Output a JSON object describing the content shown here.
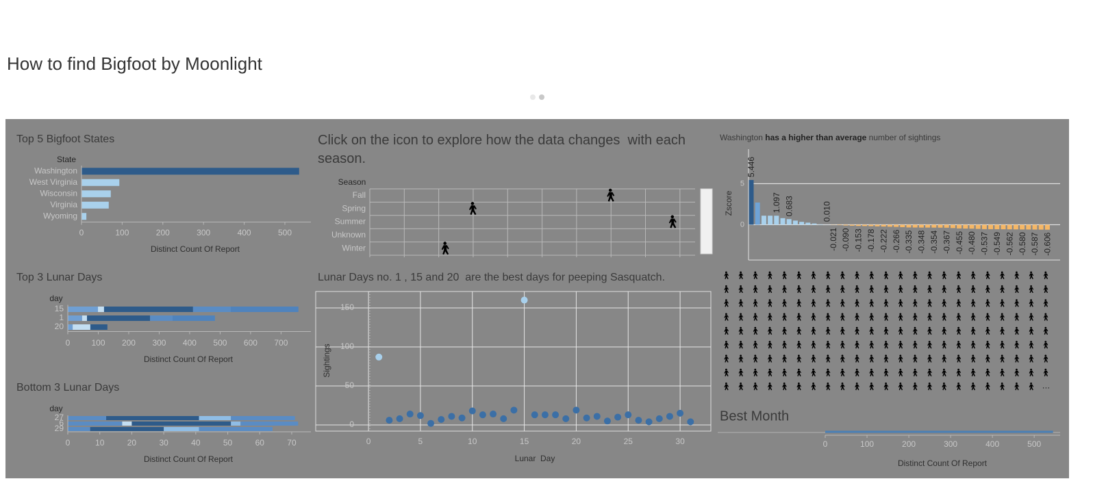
{
  "title": "How to find Bigfoot by Moonlight",
  "icon_grid": {
    "overflow": "…"
  },
  "chart_data": [
    {
      "type": "hbar",
      "title": "Top 5 Bigfoot States",
      "category_header": "State",
      "categories": [
        "Washington",
        "West Virginia",
        "Wisconsin",
        "Virginia",
        "Wyoming"
      ],
      "values": [
        535,
        93,
        72,
        67,
        12
      ],
      "colors": [
        "#2e5b8a",
        "#a9d1ec",
        "#a9d1ec",
        "#a9d1ec",
        "#a9d1ec"
      ],
      "xlim": [
        0,
        564
      ],
      "xticks": [
        0,
        100,
        200,
        300,
        400,
        500
      ],
      "xlabel": "Distinct Count Of Report"
    },
    {
      "type": "stacked_hbar",
      "title": "Top 3 Lunar Days",
      "category_header": "day",
      "categories": [
        "15",
        "1",
        "20"
      ],
      "series": [
        {
          "color": "#6f9fd3",
          "values": [
            99,
            47,
            16
          ]
        },
        {
          "color": "#c3def2",
          "values": [
            20,
            16,
            58
          ]
        },
        {
          "color": "#2e5b8a",
          "values": [
            292,
            207,
            56
          ]
        },
        {
          "color": "#5a8cc4",
          "values": [
            124,
            74,
            0
          ]
        },
        {
          "color": "#4f83bd",
          "values": [
            222,
            139,
            0
          ]
        }
      ],
      "xlim": [
        0,
        798
      ],
      "xticks": [
        0,
        100,
        200,
        300,
        400,
        500,
        600,
        700
      ],
      "xlabel": "Distinct Count Of Report"
    },
    {
      "type": "stacked_hbar",
      "title": "Bottom 3 Lunar Days",
      "category_header": "day",
      "categories": [
        "27",
        "6",
        "29"
      ],
      "series": [
        {
          "color": "#5a8cc4",
          "values": [
            12,
            17,
            7
          ]
        },
        {
          "color": "#c3def2",
          "values": [
            0,
            3,
            0
          ]
        },
        {
          "color": "#2e5b8a",
          "values": [
            29,
            31,
            23
          ]
        },
        {
          "color": "#8fbde6",
          "values": [
            10,
            3,
            11
          ]
        },
        {
          "color": "#5a8cc4",
          "values": [
            20,
            18,
            23
          ]
        }
      ],
      "xlim": [
        0,
        76
      ],
      "xticks": [
        0,
        10,
        20,
        30,
        40,
        50,
        60,
        70
      ],
      "xlabel": "Distinct Count Of Report"
    },
    {
      "type": "strip",
      "title": "Click on the icon to explore how the data changes  with each season.",
      "category_header": "Season",
      "categories": [
        "Fall",
        "Spring",
        "Summer",
        "Unknown",
        "Winter"
      ],
      "values": [
        7.0,
        3.0,
        8.8,
        null,
        2.2
      ],
      "xlim": [
        0,
        9.44
      ],
      "xticks": [
        0,
        1,
        2,
        3,
        4,
        5,
        6,
        7,
        8,
        9
      ]
    },
    {
      "type": "scatter",
      "title": "Lunar Days no. 1 , 15 and 20  are the best days for peeping Sasquatch.",
      "xlabel": "Lunar  Day",
      "ylabel": "Sightings",
      "series": [
        {
          "color": "#3b6fa6",
          "x": [
            2,
            3,
            4,
            5,
            6,
            7,
            8,
            9,
            10,
            11,
            12,
            13,
            14,
            16,
            17,
            18,
            19,
            20,
            21,
            22,
            23,
            24,
            25,
            26,
            27,
            28,
            29,
            30,
            31
          ],
          "values": [
            6,
            8,
            14,
            12,
            2,
            7,
            11,
            9,
            18,
            13,
            14,
            8,
            19,
            13,
            13,
            13,
            8,
            19,
            9,
            11,
            5,
            10,
            13,
            6,
            4,
            8,
            11,
            15,
            4
          ]
        },
        {
          "color": "#a8d0ec",
          "x": [
            1,
            15
          ],
          "values": [
            87,
            160
          ]
        }
      ],
      "xlim": [
        -5.08,
        32.96
      ],
      "ylim": [
        -7.9,
        171
      ],
      "xticks": [
        0,
        5,
        10,
        15,
        20,
        25,
        30
      ],
      "yticks": [
        0,
        50,
        100,
        150
      ],
      "grid": true
    },
    {
      "type": "bar",
      "annotation": {
        "before": "Washington ",
        "emphasis": "has a higher than average",
        "after": " number of sightings"
      },
      "ylabel": "Zscore",
      "values": [
        5.446,
        2.7,
        1.1,
        1.1,
        1.097,
        0.8,
        0.683,
        0.5,
        0.35,
        0.25,
        0.15,
        0.05,
        0.01,
        -0.021,
        -0.05,
        -0.09,
        -0.12,
        -0.153,
        -0.165,
        -0.178,
        -0.2,
        -0.222,
        -0.245,
        -0.266,
        -0.3,
        -0.335,
        -0.341,
        -0.348,
        -0.351,
        -0.354,
        -0.36,
        -0.367,
        -0.41,
        -0.455,
        -0.47,
        -0.48,
        -0.51,
        -0.537,
        -0.543,
        -0.549,
        -0.555,
        -0.562,
        -0.57,
        -0.58,
        -0.584,
        -0.587,
        -0.597,
        -0.606
      ],
      "value_labels": [
        "5.446",
        null,
        null,
        null,
        "1.097",
        null,
        "0.683",
        null,
        null,
        null,
        null,
        null,
        "0.010",
        "-0.021",
        null,
        "-0.090",
        null,
        "-0.153",
        null,
        "-0.178",
        null,
        "-0.222",
        null,
        "-0.266",
        null,
        "-0.335",
        null,
        "-0.348",
        null,
        "-0.354",
        null,
        "-0.367",
        null,
        "-0.455",
        null,
        "-0.480",
        null,
        "-0.537",
        null,
        "-0.549",
        null,
        "-0.562",
        null,
        "-0.580",
        null,
        "-0.587",
        null,
        "-0.606"
      ],
      "colors": [
        "#2e5b8a",
        "#6fa3d6",
        "#a9d1ec",
        "#a9d1ec",
        "#a9d1ec",
        "#a9d1ec",
        "#a9d1ec",
        "#a9d1ec",
        "#a9d1ec",
        "#a9d1ec",
        "#a9d1ec",
        "#a9d1ec",
        "#a9d1ec",
        "#f5b766",
        "#f5b766",
        "#f5b766",
        "#f5b766",
        "#f5b766",
        "#f5b766",
        "#f5b766",
        "#f5b766",
        "#f5b766",
        "#f5b766",
        "#f5b766",
        "#f5b766",
        "#f5b766",
        "#f5b766",
        "#f5b766",
        "#f5b766",
        "#f5b766",
        "#f5b766",
        "#f5b766",
        "#f5b766",
        "#f5b766",
        "#f5b766",
        "#f5b766",
        "#f5b766",
        "#f5b766",
        "#f5b766",
        "#f5b766",
        "#f5b766",
        "#f5b766",
        "#f5b766",
        "#f5b766",
        "#f5b766",
        "#f5b766",
        "#f5b766",
        "#f5b766"
      ],
      "ylim": [
        -4.3,
        9.2
      ],
      "yticks": [
        0,
        5
      ],
      "grid": true
    },
    {
      "type": "hbar",
      "title": "Best Month",
      "categories": [
        null
      ],
      "values": [
        545
      ],
      "color": "#4a7fb5",
      "xlim": [
        0,
        562
      ],
      "xticks": [
        0,
        100,
        200,
        300,
        400,
        500
      ],
      "xlabel": "Distinct Count Of Report"
    }
  ]
}
